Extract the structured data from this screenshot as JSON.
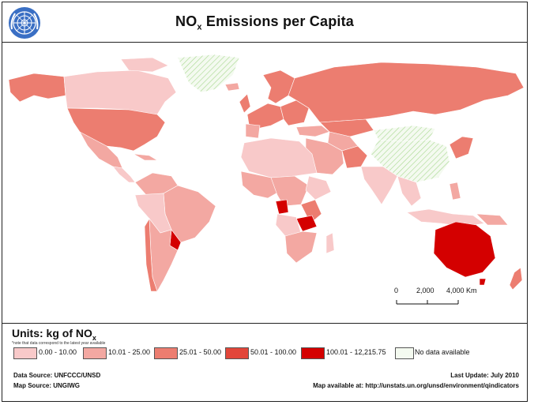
{
  "title": {
    "main": "NO",
    "sub": "x",
    "rest": " Emissions per Capita"
  },
  "scale": {
    "labels": [
      "0",
      "2,000",
      "4,000 Km"
    ]
  },
  "legend": {
    "units_prefix": "Units: kg of NO",
    "units_sub": "x",
    "note": "*note that data correspond to the latest year available",
    "classes": [
      {
        "label": "0.00 - 10.00",
        "color": "#f8c9c9"
      },
      {
        "label": "10.01 - 25.00",
        "color": "#f3a8a2"
      },
      {
        "label": "25.01 - 50.00",
        "color": "#ec7d70"
      },
      {
        "label": "50.01 - 100.00",
        "color": "#e2463a"
      },
      {
        "label": "100.01 - 12,215.75",
        "color": "#d40000"
      },
      {
        "label": "No data available",
        "color": "#f4faf0"
      }
    ]
  },
  "footer": {
    "data_source": "Data Source: UNFCCC/UNSD",
    "map_source": "Map Source: UNGIWG",
    "last_update": "Last Update: July 2010",
    "available": "Map available at: http://unstats.un.org/unsd/environment/qindicators"
  },
  "colors": {
    "border": "#222222",
    "nodata_hatch": "#a8d890"
  },
  "icons": {
    "logo": "un-emblem-icon"
  }
}
